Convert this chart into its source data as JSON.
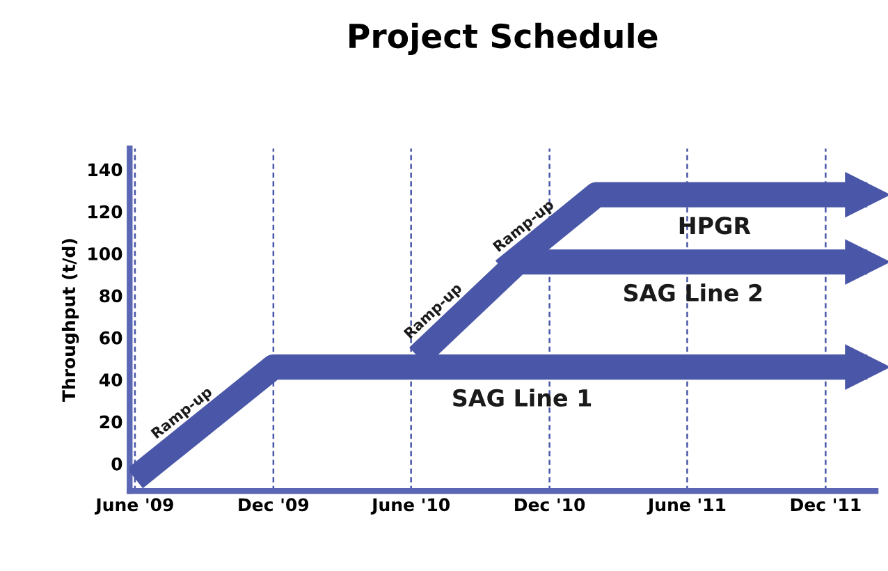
{
  "chart_data": {
    "type": "line",
    "title": "Project Schedule",
    "ylabel": "Throughput (t/d)",
    "series": [
      {
        "name": "SAG Line 1",
        "color": "#4a57a8",
        "x": [
          "2009-06-01",
          "2009-12-01",
          "2012-01-25"
        ],
        "values": [
          -7,
          46,
          46
        ]
      },
      {
        "name": "SAG Line 2",
        "color": "#4a57a8",
        "x": [
          "2010-06-10",
          "2010-10-20",
          "2012-01-25"
        ],
        "values": [
          51,
          96,
          96
        ]
      },
      {
        "name": "HPGR",
        "color": "#4a57a8",
        "x": [
          "2010-10-01",
          "2011-02-01",
          "2012-01-25"
        ],
        "values": [
          92,
          128,
          128
        ]
      }
    ],
    "annotations": [
      {
        "text": "Ramp-up",
        "x": "2009-08-20",
        "y": 16
      },
      {
        "text": "Ramp-up",
        "x": "2010-07-20",
        "y": 65
      },
      {
        "text": "Ramp-up",
        "x": "2010-11-15",
        "y": 105
      }
    ],
    "xlim": [
      "2009-05-25",
      "2012-02-05"
    ],
    "xticks": [
      {
        "value": "2009-06-01",
        "label": "June '09"
      },
      {
        "value": "2009-12-01",
        "label": "Dec '09"
      },
      {
        "value": "2010-06-01",
        "label": "June '10"
      },
      {
        "value": "2010-12-01",
        "label": "Dec '10"
      },
      {
        "value": "2011-06-01",
        "label": "June '11"
      },
      {
        "value": "2011-12-01",
        "label": "Dec '11"
      }
    ],
    "ylim": [
      -13,
      150
    ],
    "yticks": [
      0,
      20,
      40,
      60,
      80,
      100,
      120,
      140
    ],
    "grid": "x",
    "legend": false,
    "line_style": "solid",
    "marker": "none"
  }
}
